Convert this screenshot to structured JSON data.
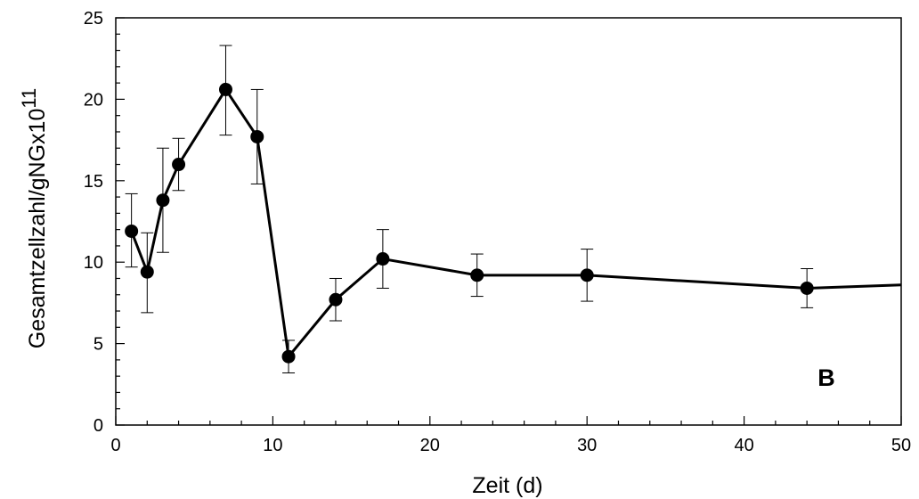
{
  "chart_data": {
    "type": "line",
    "xlabel": "Zeit (d)",
    "ylabel": "Gesamtzellzahl/gNGx10",
    "ylabel_superscript": "11",
    "panel_label": "B",
    "xlim": [
      0,
      50
    ],
    "ylim": [
      0,
      25
    ],
    "xticks": [
      "0",
      "10",
      "20",
      "30",
      "40",
      "50"
    ],
    "yticks": [
      "0",
      "5",
      "10",
      "15",
      "20",
      "25"
    ],
    "xtick_values": [
      0,
      10,
      20,
      30,
      40,
      50
    ],
    "ytick_values": [
      0,
      5,
      10,
      15,
      20,
      25
    ],
    "minor_xtick_values": [
      2,
      4,
      6,
      8,
      12,
      14,
      16,
      18,
      22,
      24,
      26,
      28,
      32,
      34,
      36,
      38,
      42,
      44,
      46,
      48
    ],
    "minor_ytick_values": [
      1,
      2,
      3,
      4,
      6,
      7,
      8,
      9,
      11,
      12,
      13,
      14,
      16,
      17,
      18,
      19,
      21,
      22,
      23,
      24
    ],
    "grid": false,
    "series": [
      {
        "x": [
          1,
          2,
          3,
          4,
          7,
          9,
          11,
          14,
          17,
          23,
          30,
          44
        ],
        "y": [
          11.9,
          9.4,
          13.8,
          16.0,
          20.6,
          17.7,
          4.2,
          7.7,
          10.2,
          9.2,
          9.2,
          8.4
        ],
        "err_upper": [
          14.2,
          11.8,
          17.0,
          17.6,
          23.3,
          20.6,
          5.2,
          9.0,
          12.0,
          10.5,
          10.8,
          9.6
        ],
        "err_lower": [
          9.7,
          6.9,
          10.6,
          14.4,
          17.8,
          14.8,
          3.2,
          6.4,
          8.4,
          7.9,
          7.6,
          7.2
        ],
        "line_end": [
          50,
          8.6
        ]
      }
    ]
  }
}
